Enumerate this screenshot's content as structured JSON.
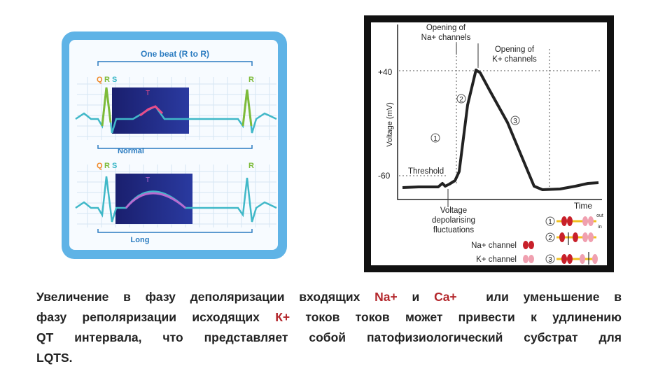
{
  "ecg_panel": {
    "header": "One beat (R to R)",
    "rows": [
      {
        "q": "Q",
        "r": "R",
        "s": "S",
        "t": "T",
        "next_r": "R",
        "label": "Normal"
      },
      {
        "q": "Q",
        "r": "R",
        "s": "S",
        "t": "T",
        "next_r": "R",
        "label": "Long"
      }
    ]
  },
  "action_potential": {
    "y_axis_label": "Voltage (mV)",
    "x_axis_label": "Time",
    "y_labels": [
      "+40",
      "-60"
    ],
    "na_opening": [
      "Opening of",
      "Na+ channels"
    ],
    "k_opening": [
      "Opening of",
      "K+ channels"
    ],
    "threshold": "Threshold",
    "fluctuations": [
      "Voltage",
      "depolarising",
      "fluctuations"
    ],
    "phases": [
      "1",
      "2",
      "3"
    ],
    "legend": {
      "na": "Na+ channel",
      "k": "K+ channel",
      "out": "out",
      "in": "in",
      "rows": [
        "1",
        "2",
        "3"
      ]
    }
  },
  "text": {
    "lines": [
      [
        "Увеличение в фазу деполяризации входящих ",
        "Na+",
        " и ",
        "Ca+",
        "  или уменьшение в"
      ],
      [
        "фазу реполяризации исходящих ",
        "К+",
        " токов токов может привести к удлинению"
      ],
      [
        "QT интервала, что представляет собой патофизиологический субстрат для"
      ],
      [
        "LQTS."
      ]
    ]
  }
}
